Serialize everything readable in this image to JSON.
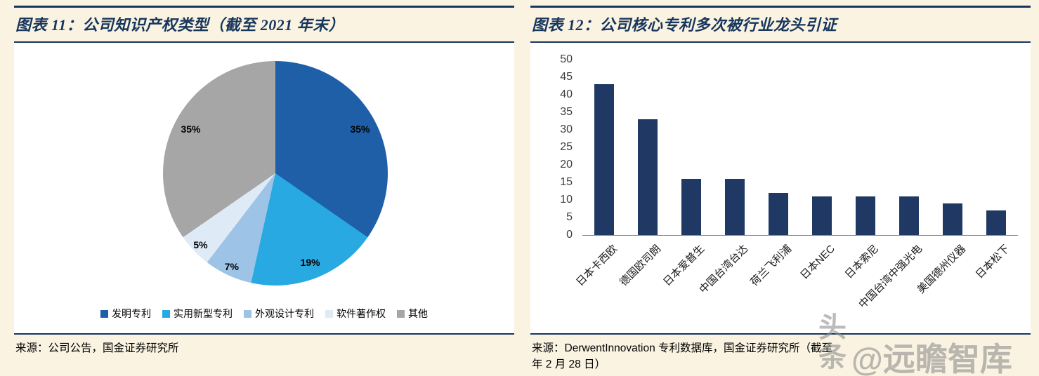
{
  "page": {
    "background": "#FAF3E1",
    "accent_navy": "#17365D",
    "axis_gray": "#7F7F7F"
  },
  "figure_left": {
    "title": "图表 11：公司知识产权类型（截至 2021 年末）",
    "source": "来源：公司公告，国金证券研究所",
    "chart_data": {
      "type": "pie",
      "labels": [
        "发明专利",
        "实用新型专利",
        "外观设计专利",
        "软件著作权",
        "其他"
      ],
      "values": [
        35,
        19,
        7,
        5,
        35
      ],
      "value_unit": "%",
      "colors": [
        "#1F5FA8",
        "#29A9E1",
        "#9DC3E6",
        "#DEEBF7",
        "#A6A6A6"
      ],
      "start_angle_deg": 0,
      "direction": "clockwise",
      "legend_position": "bottom"
    }
  },
  "figure_right": {
    "title": "图表 12：公司核心专利多次被行业龙头引证",
    "source_line1": "来源：DerwentInnovation 专利数据库，国金证券研究所（截至",
    "source_line2": "年 2 月 28 日）",
    "chart_data": {
      "type": "bar",
      "categories": [
        "日本卡西欧",
        "德国欧司朗",
        "日本爱普生",
        "中国台湾台达",
        "荷兰飞利浦",
        "日本NEC",
        "日本索尼",
        "中国台湾中强光电",
        "美国德州仪器",
        "日本松下"
      ],
      "values": [
        43,
        33,
        16,
        16,
        12,
        11,
        11,
        11,
        9,
        7
      ],
      "ylim": [
        0,
        50
      ],
      "ytick_step": 5,
      "yticks": [
        0,
        5,
        10,
        15,
        20,
        25,
        30,
        35,
        40,
        45,
        50
      ],
      "bar_color": "#1F3864",
      "grid": false,
      "legend": false
    }
  },
  "watermark": {
    "text_vertical": "头条",
    "text_horizontal": "@远瞻智库"
  }
}
